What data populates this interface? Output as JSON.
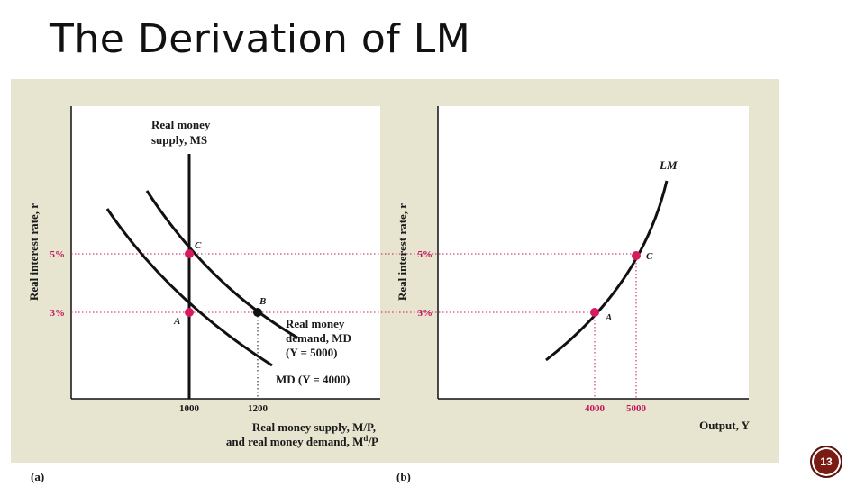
{
  "slide": {
    "title": "The Derivation of LM",
    "page_number": "13"
  },
  "colors": {
    "background": "#ffffff",
    "figure_bg": "#e7e4cf",
    "plot_bg": "#ffffff",
    "curve": "#111111",
    "highlight": "#d81b60",
    "guide": "#c2185b"
  },
  "panel_a": {
    "tag": "(a)",
    "y_axis_label": "Real interest rate, r",
    "x_axis_label_line1": "Real money supply, M/P,",
    "x_axis_label_line2": "and real money demand, M",
    "x_axis_label_sup": "d",
    "x_axis_label_end": "/P",
    "y_ticks": [
      "5%",
      "3%"
    ],
    "x_ticks": [
      "1000",
      "1200"
    ],
    "ms_label_line1": "Real money",
    "ms_label_line2": "supply, MS",
    "md_high_label_line1": "Real money",
    "md_high_label_line2": "demand, MD",
    "md_high_label_line3": "(Y = 5000)",
    "md_low_label": "MD (Y = 4000)",
    "points": [
      {
        "label": "C",
        "x": 1000,
        "r": 5
      },
      {
        "label": "A",
        "x": 1000,
        "r": 3
      },
      {
        "label": "B",
        "x": 1200,
        "r": 3
      }
    ]
  },
  "panel_b": {
    "tag": "(b)",
    "y_axis_label": "Real interest rate, r",
    "x_axis_label": "Output, Y",
    "y_ticks": [
      "5%",
      "3%"
    ],
    "x_ticks": [
      "4000",
      "5000"
    ],
    "curve_label": "LM",
    "points": [
      {
        "label": "A",
        "Y": 4000,
        "r": 3
      },
      {
        "label": "C",
        "Y": 5000,
        "r": 5
      }
    ]
  }
}
